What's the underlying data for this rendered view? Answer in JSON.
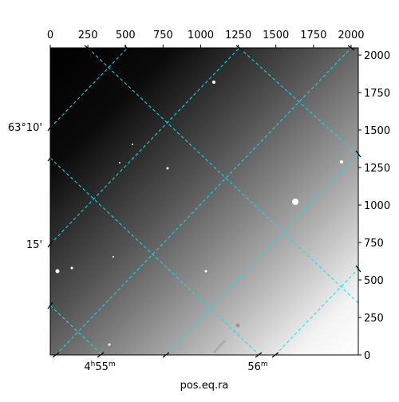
{
  "chart_data": {
    "type": "image",
    "xlabel": "pos.eq.ra",
    "xlim": [
      0,
      2048
    ],
    "ylim": [
      0,
      2048
    ],
    "xticks": [
      0,
      250,
      500,
      750,
      1000,
      1250,
      1500,
      1750,
      2000
    ],
    "yticks": [
      0,
      250,
      500,
      750,
      1000,
      1250,
      1500,
      1750,
      2000
    ],
    "left_tick_labels": [
      "63°10'",
      "15'"
    ],
    "bottom_tick_labels": [
      [
        "4",
        "h",
        "55",
        "m"
      ],
      [
        "56",
        "m"
      ]
    ]
  }
}
